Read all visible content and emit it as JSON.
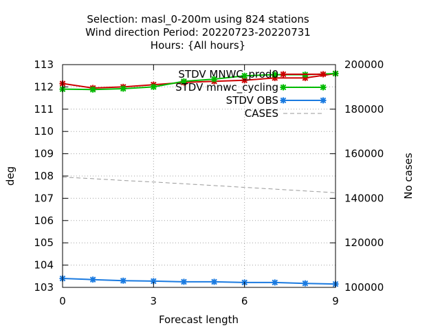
{
  "chart_data": {
    "type": "line",
    "title_lines": [
      "Selection: masl_0-200m using   824 stations",
      "Wind direction   Period: 20220723-20220731",
      "Hours: {All hours}"
    ],
    "xlabel": "Forecast length",
    "ylabel": "deg",
    "y2label": "No cases",
    "x": [
      0,
      1,
      2,
      3,
      4,
      5,
      6,
      7,
      8,
      9
    ],
    "xlim": [
      0,
      9
    ],
    "ylim": [
      103,
      113
    ],
    "y2lim": [
      100000,
      200000
    ],
    "xticks": [
      0,
      3,
      6,
      9
    ],
    "yticks": [
      103,
      104,
      105,
      106,
      107,
      108,
      109,
      110,
      111,
      112,
      113
    ],
    "y2ticks": [
      100000,
      120000,
      140000,
      160000,
      180000,
      200000
    ],
    "grid": true,
    "legend_position": "top-right",
    "series": [
      {
        "name": "STDV MNWC_prod0",
        "axis": "y",
        "color": "#cc0000",
        "marker": "star",
        "values": [
          112.15,
          111.95,
          112.0,
          112.1,
          112.2,
          112.25,
          112.3,
          112.4,
          112.4,
          112.6
        ]
      },
      {
        "name": "STDV mnwc_cycling",
        "axis": "y",
        "color": "#00bb00",
        "marker": "star",
        "values": [
          111.9,
          111.88,
          111.92,
          112.0,
          112.25,
          112.35,
          112.5,
          112.55,
          112.55,
          112.6
        ]
      },
      {
        "name": "STDV OBS",
        "axis": "y",
        "color": "#1a7ae0",
        "marker": "star",
        "values": [
          103.4,
          103.35,
          103.3,
          103.28,
          103.25,
          103.25,
          103.22,
          103.22,
          103.18,
          103.15
        ]
      },
      {
        "name": "CASES",
        "axis": "y2",
        "color": "#999999",
        "marker": "none",
        "dashed": true,
        "values": [
          149500,
          148800,
          148000,
          147300,
          146500,
          145700,
          144900,
          144100,
          143300,
          142500
        ]
      }
    ]
  }
}
